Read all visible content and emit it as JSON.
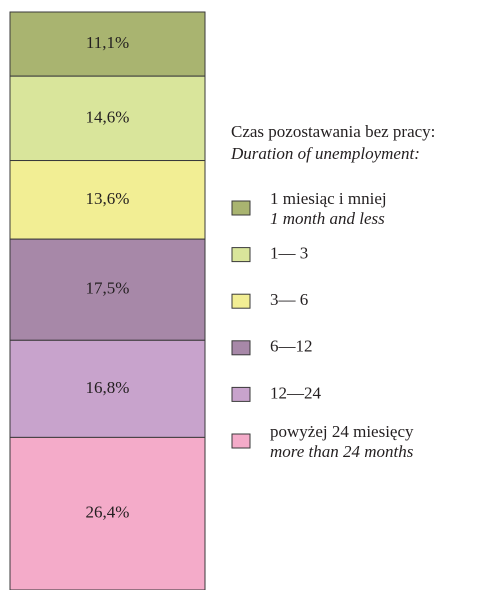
{
  "chart_data": {
    "type": "stacked_bar",
    "legend_title": "Czas pozostawania bez pracy:",
    "legend_title_en": "Duration of unemployment:",
    "ylim": [
      0,
      100
    ],
    "series": [
      {
        "name": "1 miesiąc i mniej",
        "name_en": "1 month and less",
        "color": "#a9b470",
        "values": [
          11.1
        ],
        "value_labels": [
          "11,1%"
        ]
      },
      {
        "name": "1— 3",
        "color": "#d9e59b",
        "values": [
          14.6
        ],
        "value_labels": [
          "14,6%"
        ]
      },
      {
        "name": "3— 6",
        "color": "#f2ee94",
        "values": [
          13.6
        ],
        "value_labels": [
          "13,6%"
        ]
      },
      {
        "name": "6—12",
        "color": "#a788a8",
        "values": [
          17.5
        ],
        "value_labels": [
          "17,5%"
        ]
      },
      {
        "name": "12—24",
        "color": "#c8a3cc",
        "values": [
          16.8
        ],
        "value_labels": [
          "16,8%"
        ]
      },
      {
        "name": "powyżej 24 miesięcy",
        "name_en": "more than 24 months",
        "color": "#f4abc9",
        "values": [
          26.4
        ],
        "value_labels": [
          "26,4%"
        ]
      }
    ]
  }
}
